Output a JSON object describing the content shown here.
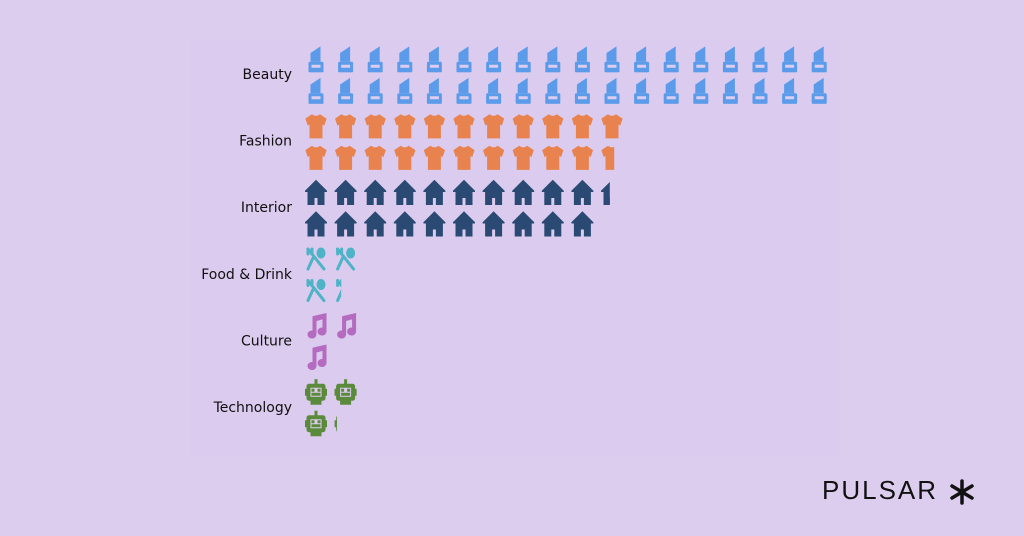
{
  "chart_data": {
    "type": "pictogram",
    "categories": [
      "Beauty",
      "Fashion",
      "Interior",
      "Food & Drink",
      "Culture",
      "Technology"
    ],
    "values": [
      36,
      21.6,
      20.4,
      3.3,
      3,
      3.1
    ],
    "colors": [
      "#5b9bea",
      "#e8834f",
      "#2a4a73",
      "#4fb3c8",
      "#b46bc0",
      "#5b8a3c"
    ],
    "icons_per_column": 2
  },
  "logo": "PULSAR"
}
